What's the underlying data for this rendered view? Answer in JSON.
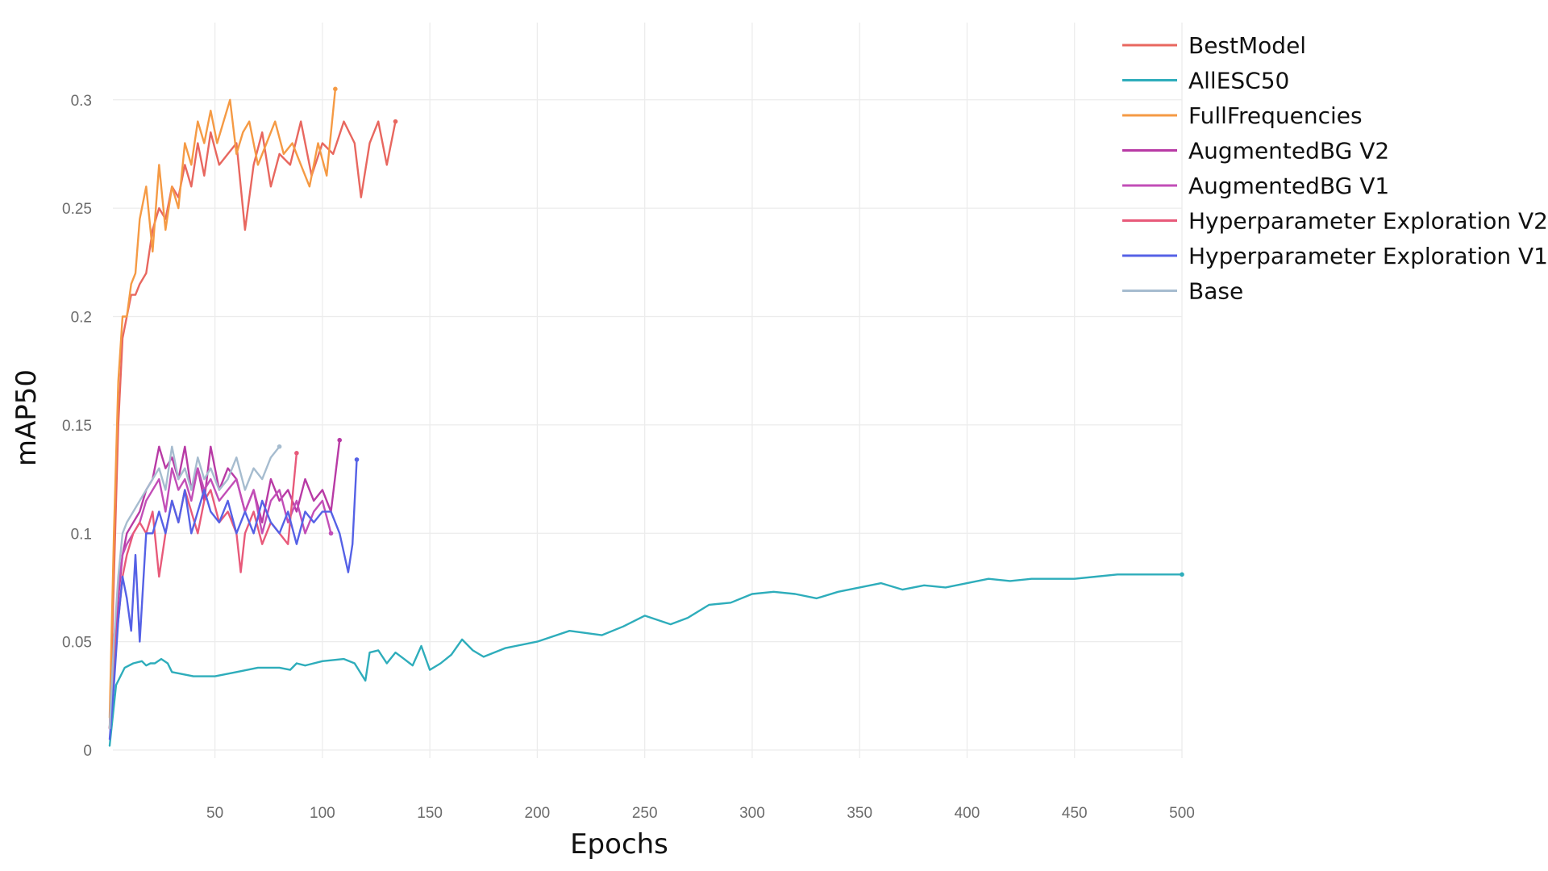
{
  "chart_data": {
    "type": "line",
    "title": "",
    "xlabel": "Epochs",
    "ylabel": "mAP50",
    "xlim": [
      1,
      500
    ],
    "ylim": [
      0,
      0.32
    ],
    "x_ticks": [
      50,
      100,
      150,
      200,
      250,
      300,
      350,
      400,
      450,
      500
    ],
    "x_tick_labels": [
      "50",
      "100",
      "150",
      "200",
      "250",
      "300",
      "350",
      "400",
      "450",
      "500"
    ],
    "y_ticks": [
      0,
      0.05,
      0.1,
      0.15,
      0.2,
      0.25,
      0.3
    ],
    "y_tick_labels": [
      "0",
      "0.05",
      "0.1",
      "0.15",
      "0.2",
      "0.25",
      "0.3"
    ],
    "grid": true,
    "legend_position": "top-right",
    "series": [
      {
        "name": "BestModel",
        "color": "#e8675f",
        "x": [
          1,
          3,
          5,
          7,
          9,
          11,
          13,
          15,
          18,
          21,
          24,
          27,
          30,
          33,
          36,
          39,
          42,
          45,
          48,
          52,
          56,
          60,
          64,
          68,
          72,
          76,
          80,
          85,
          90,
          95,
          100,
          105,
          110,
          115,
          118,
          122,
          126,
          130,
          134
        ],
        "values": [
          0.01,
          0.08,
          0.15,
          0.19,
          0.2,
          0.21,
          0.21,
          0.215,
          0.22,
          0.24,
          0.25,
          0.245,
          0.26,
          0.255,
          0.27,
          0.26,
          0.28,
          0.265,
          0.285,
          0.27,
          0.275,
          0.28,
          0.24,
          0.27,
          0.285,
          0.26,
          0.275,
          0.27,
          0.29,
          0.265,
          0.28,
          0.275,
          0.29,
          0.28,
          0.255,
          0.28,
          0.29,
          0.27,
          0.29
        ]
      },
      {
        "name": "AllESC50",
        "color": "#2eadbb",
        "x": [
          1,
          4,
          8,
          12,
          16,
          18,
          20,
          22,
          25,
          28,
          30,
          35,
          40,
          50,
          60,
          70,
          80,
          85,
          88,
          92,
          100,
          110,
          115,
          120,
          122,
          126,
          130,
          134,
          138,
          142,
          146,
          150,
          155,
          160,
          165,
          170,
          175,
          185,
          200,
          215,
          230,
          240,
          250,
          262,
          270,
          280,
          290,
          300,
          310,
          320,
          330,
          340,
          350,
          360,
          370,
          380,
          390,
          400,
          410,
          420,
          430,
          440,
          450,
          460,
          470,
          480,
          490,
          500
        ],
        "values": [
          0.002,
          0.03,
          0.038,
          0.04,
          0.041,
          0.039,
          0.04,
          0.04,
          0.042,
          0.04,
          0.036,
          0.035,
          0.034,
          0.034,
          0.036,
          0.038,
          0.038,
          0.037,
          0.04,
          0.039,
          0.041,
          0.042,
          0.04,
          0.032,
          0.045,
          0.046,
          0.04,
          0.045,
          0.042,
          0.039,
          0.048,
          0.037,
          0.04,
          0.044,
          0.051,
          0.046,
          0.043,
          0.047,
          0.05,
          0.055,
          0.053,
          0.057,
          0.062,
          0.058,
          0.061,
          0.067,
          0.068,
          0.072,
          0.073,
          0.072,
          0.07,
          0.073,
          0.075,
          0.077,
          0.074,
          0.076,
          0.075,
          0.077,
          0.079,
          0.078,
          0.079,
          0.079,
          0.079,
          0.08,
          0.081,
          0.081,
          0.081,
          0.081
        ]
      },
      {
        "name": "FullFrequencies",
        "color": "#f59a44",
        "x": [
          1,
          3,
          5,
          7,
          9,
          11,
          13,
          15,
          18,
          21,
          24,
          27,
          30,
          33,
          36,
          39,
          42,
          45,
          48,
          51,
          54,
          57,
          60,
          63,
          66,
          70,
          74,
          78,
          82,
          86,
          90,
          94,
          98,
          102,
          106
        ],
        "values": [
          0.015,
          0.1,
          0.17,
          0.2,
          0.2,
          0.215,
          0.22,
          0.245,
          0.26,
          0.23,
          0.27,
          0.24,
          0.26,
          0.25,
          0.28,
          0.27,
          0.29,
          0.28,
          0.295,
          0.28,
          0.29,
          0.3,
          0.275,
          0.285,
          0.29,
          0.27,
          0.28,
          0.29,
          0.275,
          0.28,
          0.27,
          0.26,
          0.28,
          0.265,
          0.305
        ]
      },
      {
        "name": "AugmentedBG V2",
        "color": "#b83aa5",
        "x": [
          1,
          3,
          5,
          7,
          9,
          12,
          15,
          18,
          21,
          24,
          27,
          30,
          33,
          36,
          39,
          42,
          45,
          48,
          52,
          56,
          60,
          64,
          68,
          72,
          76,
          80,
          84,
          88,
          92,
          96,
          100,
          104,
          108
        ],
        "values": [
          0.01,
          0.04,
          0.07,
          0.09,
          0.1,
          0.105,
          0.11,
          0.12,
          0.125,
          0.14,
          0.13,
          0.135,
          0.125,
          0.14,
          0.12,
          0.13,
          0.115,
          0.14,
          0.12,
          0.13,
          0.125,
          0.11,
          0.12,
          0.105,
          0.125,
          0.115,
          0.12,
          0.11,
          0.125,
          0.115,
          0.12,
          0.11,
          0.143
        ]
      },
      {
        "name": "AugmentedBG V1",
        "color": "#c24eb7",
        "x": [
          1,
          3,
          5,
          7,
          9,
          12,
          15,
          18,
          21,
          24,
          27,
          30,
          33,
          36,
          39,
          42,
          45,
          48,
          52,
          56,
          60,
          64,
          68,
          72,
          76,
          80,
          84,
          88,
          92,
          96,
          100,
          104
        ],
        "values": [
          0.01,
          0.05,
          0.075,
          0.09,
          0.095,
          0.1,
          0.105,
          0.115,
          0.12,
          0.125,
          0.11,
          0.13,
          0.12,
          0.125,
          0.115,
          0.13,
          0.12,
          0.125,
          0.115,
          0.12,
          0.125,
          0.11,
          0.12,
          0.1,
          0.115,
          0.12,
          0.105,
          0.115,
          0.1,
          0.11,
          0.115,
          0.1
        ]
      },
      {
        "name": "Hyperparameter Exploration V2",
        "color": "#e85a7a",
        "x": [
          1,
          3,
          5,
          7,
          9,
          12,
          15,
          18,
          21,
          24,
          27,
          30,
          33,
          36,
          39,
          42,
          45,
          48,
          52,
          56,
          60,
          62,
          64,
          68,
          72,
          76,
          80,
          84,
          88
        ],
        "values": [
          0.01,
          0.04,
          0.06,
          0.08,
          0.09,
          0.1,
          0.105,
          0.1,
          0.11,
          0.08,
          0.1,
          0.115,
          0.105,
          0.12,
          0.11,
          0.1,
          0.115,
          0.12,
          0.105,
          0.11,
          0.1,
          0.082,
          0.1,
          0.11,
          0.095,
          0.105,
          0.1,
          0.095,
          0.137
        ]
      },
      {
        "name": "Hyperparameter Exploration V1",
        "color": "#5561e6",
        "x": [
          1,
          3,
          5,
          7,
          9,
          11,
          13,
          15,
          18,
          21,
          24,
          27,
          30,
          33,
          36,
          39,
          42,
          45,
          48,
          52,
          56,
          60,
          64,
          68,
          72,
          76,
          80,
          84,
          88,
          92,
          96,
          100,
          104,
          108,
          112,
          114,
          116
        ],
        "values": [
          0.005,
          0.03,
          0.06,
          0.08,
          0.07,
          0.055,
          0.09,
          0.05,
          0.1,
          0.1,
          0.11,
          0.1,
          0.115,
          0.105,
          0.12,
          0.1,
          0.11,
          0.12,
          0.11,
          0.105,
          0.115,
          0.1,
          0.11,
          0.1,
          0.115,
          0.105,
          0.1,
          0.11,
          0.095,
          0.11,
          0.105,
          0.11,
          0.11,
          0.1,
          0.082,
          0.095,
          0.134
        ]
      },
      {
        "name": "Base",
        "color": "#a6bccf",
        "x": [
          1,
          3,
          5,
          7,
          9,
          12,
          15,
          18,
          21,
          24,
          27,
          30,
          33,
          36,
          39,
          42,
          45,
          48,
          52,
          56,
          60,
          64,
          68,
          72,
          76,
          80
        ],
        "values": [
          0.01,
          0.05,
          0.08,
          0.1,
          0.105,
          0.11,
          0.115,
          0.12,
          0.125,
          0.13,
          0.12,
          0.14,
          0.125,
          0.13,
          0.12,
          0.135,
          0.125,
          0.13,
          0.12,
          0.125,
          0.135,
          0.12,
          0.13,
          0.125,
          0.135,
          0.14
        ]
      }
    ]
  }
}
